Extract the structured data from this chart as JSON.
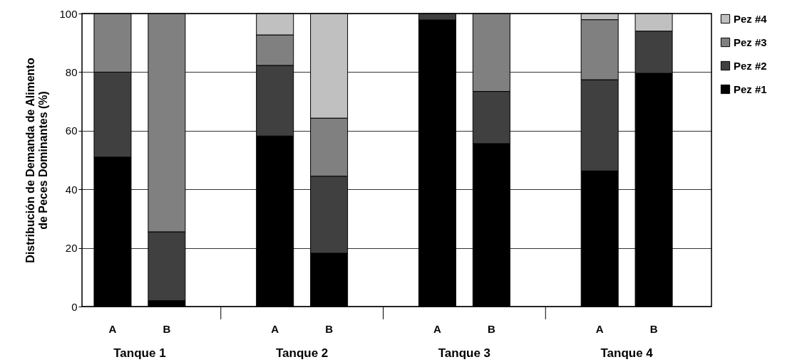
{
  "chart_data": {
    "type": "bar",
    "stacked": true,
    "ylabel": "Distribución de Demanda de Alimento\nde Peces Dominantes (%)",
    "categories": [
      "A",
      "B",
      "A",
      "B",
      "A",
      "B",
      "A",
      "B"
    ],
    "annotations": [
      "Tanque 1",
      "Tanque 2",
      "Tanque 3",
      "Tanque 4"
    ],
    "series": [
      {
        "name": "Pez #1",
        "color": "#000000",
        "values": [
          51,
          2,
          58.2,
          18.2,
          97.8,
          55.6,
          46.3,
          79.6
        ]
      },
      {
        "name": "Pez #2",
        "color": "#404040",
        "values": [
          29,
          23.5,
          24.1,
          26.3,
          2.2,
          17.8,
          31.1,
          14.4
        ]
      },
      {
        "name": "Pez #3",
        "color": "#808080",
        "values": [
          20,
          74.5,
          10.4,
          19.8,
          null,
          26.6,
          20.5,
          null
        ]
      },
      {
        "name": "Pez #4",
        "color": "#c0c0c0",
        "values": [
          null,
          null,
          7.3,
          35.7,
          null,
          null,
          2.1,
          6.0
        ]
      }
    ],
    "ylim": [
      0,
      100
    ],
    "yticks": [
      0,
      20,
      40,
      60,
      80,
      100
    ],
    "grid": "y",
    "legend": "top right"
  }
}
